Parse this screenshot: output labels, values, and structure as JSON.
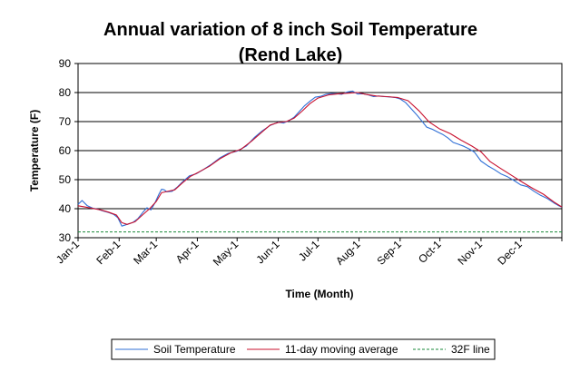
{
  "chart_data": {
    "type": "line",
    "title": "Annual variation of 8 inch Soil Temperature",
    "subtitle": "(Rend Lake)",
    "xlabel": "Time (Month)",
    "ylabel": "Temperature (F)",
    "ylim": [
      30,
      90
    ],
    "yticks": [
      30,
      40,
      50,
      60,
      70,
      80,
      90
    ],
    "xlim_day_of_year": [
      1,
      366
    ],
    "month_ticks": [
      {
        "label": "Jan-1",
        "day": 1
      },
      {
        "label": "Feb-1",
        "day": 32
      },
      {
        "label": "Mar-1",
        "day": 60
      },
      {
        "label": "Apr-1",
        "day": 91
      },
      {
        "label": "May-1",
        "day": 121
      },
      {
        "label": "Jun-1",
        "day": 152
      },
      {
        "label": "Jul-1",
        "day": 182
      },
      {
        "label": "Aug-1",
        "day": 213
      },
      {
        "label": "Sep-1",
        "day": 244
      },
      {
        "label": "Oct-1",
        "day": 274
      },
      {
        "label": "Nov-1",
        "day": 305
      },
      {
        "label": "Dec-1",
        "day": 335
      }
    ],
    "grid": {
      "horizontal": true,
      "vertical": false
    },
    "legend_position": "bottom",
    "series": [
      {
        "name": "Soil Temperature",
        "color": "#2f6fd6",
        "style": "solid",
        "x": [
          1,
          4,
          8,
          12,
          16,
          20,
          24,
          28,
          31,
          34,
          38,
          42,
          46,
          50,
          53,
          56,
          59,
          62,
          64,
          66,
          68,
          72,
          76,
          80,
          85,
          90,
          96,
          102,
          108,
          114,
          121,
          128,
          134,
          140,
          146,
          150,
          152,
          156,
          160,
          164,
          168,
          172,
          176,
          180,
          184,
          188,
          192,
          196,
          200,
          204,
          208,
          212,
          216,
          220,
          224,
          228,
          232,
          236,
          240,
          244,
          248,
          252,
          256,
          260,
          264,
          268,
          272,
          276,
          280,
          284,
          288,
          292,
          296,
          300,
          305,
          310,
          315,
          320,
          325,
          330,
          335,
          340,
          345,
          350,
          355,
          360,
          363,
          366
        ],
        "y": [
          41.5,
          42.8,
          41.0,
          40.2,
          39.8,
          39.2,
          38.7,
          38.0,
          36.9,
          34.0,
          34.6,
          35.2,
          36.5,
          38.8,
          40.3,
          39.6,
          42.0,
          45.0,
          46.7,
          46.5,
          45.8,
          46.0,
          47.5,
          49.3,
          51.3,
          52.0,
          53.6,
          55.4,
          57.5,
          59.0,
          59.8,
          61.6,
          64.5,
          66.8,
          68.7,
          69.4,
          69.8,
          69.5,
          70.3,
          71.5,
          73.5,
          75.5,
          77.0,
          78.4,
          78.7,
          79.4,
          79.7,
          79.6,
          79.4,
          80.2,
          80.5,
          79.5,
          79.6,
          79.2,
          78.6,
          78.8,
          78.6,
          78.5,
          78.3,
          77.8,
          76.6,
          74.6,
          72.6,
          70.4,
          68.1,
          67.4,
          66.5,
          65.6,
          64.4,
          62.8,
          62.2,
          61.5,
          60.6,
          59.5,
          56.4,
          54.8,
          53.5,
          52.0,
          51.0,
          49.7,
          48.2,
          47.6,
          46.0,
          44.6,
          43.5,
          42.0,
          41.2,
          40.5
        ]
      },
      {
        "name": "11-day moving average",
        "color": "#c8102e",
        "style": "solid",
        "x": [
          1,
          6,
          12,
          18,
          24,
          30,
          34,
          38,
          44,
          50,
          55,
          60,
          64,
          68,
          74,
          80,
          86,
          92,
          100,
          108,
          116,
          124,
          132,
          140,
          146,
          152,
          158,
          164,
          170,
          176,
          182,
          190,
          198,
          206,
          212,
          218,
          226,
          234,
          242,
          250,
          258,
          266,
          274,
          282,
          290,
          298,
          305,
          312,
          320,
          328,
          336,
          344,
          352,
          360,
          366
        ],
        "y": [
          41.0,
          40.6,
          40.1,
          39.6,
          38.8,
          37.8,
          35.2,
          34.6,
          35.5,
          38.0,
          40.0,
          42.5,
          45.5,
          45.9,
          46.5,
          49.0,
          51.2,
          52.6,
          54.6,
          57.2,
          59.2,
          60.5,
          63.3,
          66.5,
          68.8,
          69.7,
          70.0,
          71.2,
          73.6,
          76.2,
          78.1,
          79.2,
          79.6,
          79.8,
          80.0,
          79.4,
          78.8,
          78.6,
          78.3,
          77.2,
          73.8,
          69.8,
          67.4,
          65.8,
          63.6,
          61.6,
          59.6,
          56.2,
          53.8,
          51.5,
          49.2,
          47.0,
          45.0,
          42.3,
          40.6
        ]
      },
      {
        "name": "32F line",
        "color": "#1a8a3a",
        "style": "dashed",
        "x": [
          1,
          366
        ],
        "y": [
          32,
          32
        ]
      }
    ]
  }
}
